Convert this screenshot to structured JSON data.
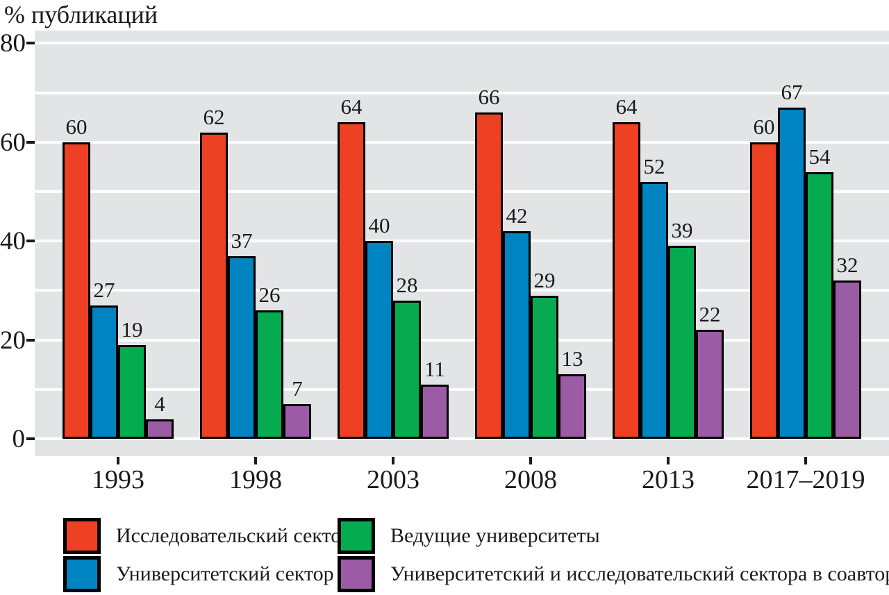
{
  "title": "% публикаций",
  "chart_data": {
    "type": "bar",
    "title": "% публикаций",
    "ylabel": "% публикаций",
    "xlabel": "",
    "categories": [
      "1993",
      "1998",
      "2003",
      "2008",
      "2013",
      "2017–2019"
    ],
    "series": [
      {
        "name": "Исследовательский сектор",
        "color": "#EE4124",
        "values": [
          60,
          62,
          64,
          66,
          64,
          60
        ]
      },
      {
        "name": "Университетский сектор",
        "color": "#0083C1",
        "values": [
          27,
          37,
          40,
          42,
          52,
          67
        ]
      },
      {
        "name": "Ведущие университеты",
        "color": "#07AB4F",
        "values": [
          19,
          26,
          28,
          29,
          39,
          54
        ]
      },
      {
        "name": "Университетский и исследовательский сектора в соавторстве",
        "color": "#9C5BA5",
        "values": [
          4,
          7,
          11,
          13,
          22,
          32
        ]
      }
    ],
    "ylim": [
      0,
      80
    ],
    "yticks": [
      0,
      20,
      40,
      60,
      80
    ],
    "gridline_step": 10,
    "grid": "horizontal",
    "gridline_color": "#FFFFFF",
    "plot_background": "#E3E4E6",
    "bar_border_color": "#000000",
    "value_labels": "above bars",
    "legend_position": "bottom, two columns"
  },
  "legend": {
    "column_assignment": [
      0,
      0,
      1,
      1
    ]
  }
}
